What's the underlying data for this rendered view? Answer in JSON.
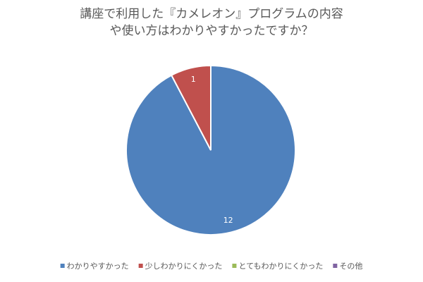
{
  "chart_data": {
    "type": "pie",
    "title": "講座で利用した『カメレオン』プログラムの内容や使い方はわかりやすかったですか？",
    "categories": [
      "わかりやすかった",
      "少しわかりにくかった",
      "とてもわかりにくかった",
      "その他"
    ],
    "values": [
      12,
      1,
      0,
      0
    ],
    "colors": [
      "#4f81bd",
      "#c0504d",
      "#9bbb59",
      "#8064a2"
    ],
    "legend": "bottom"
  }
}
